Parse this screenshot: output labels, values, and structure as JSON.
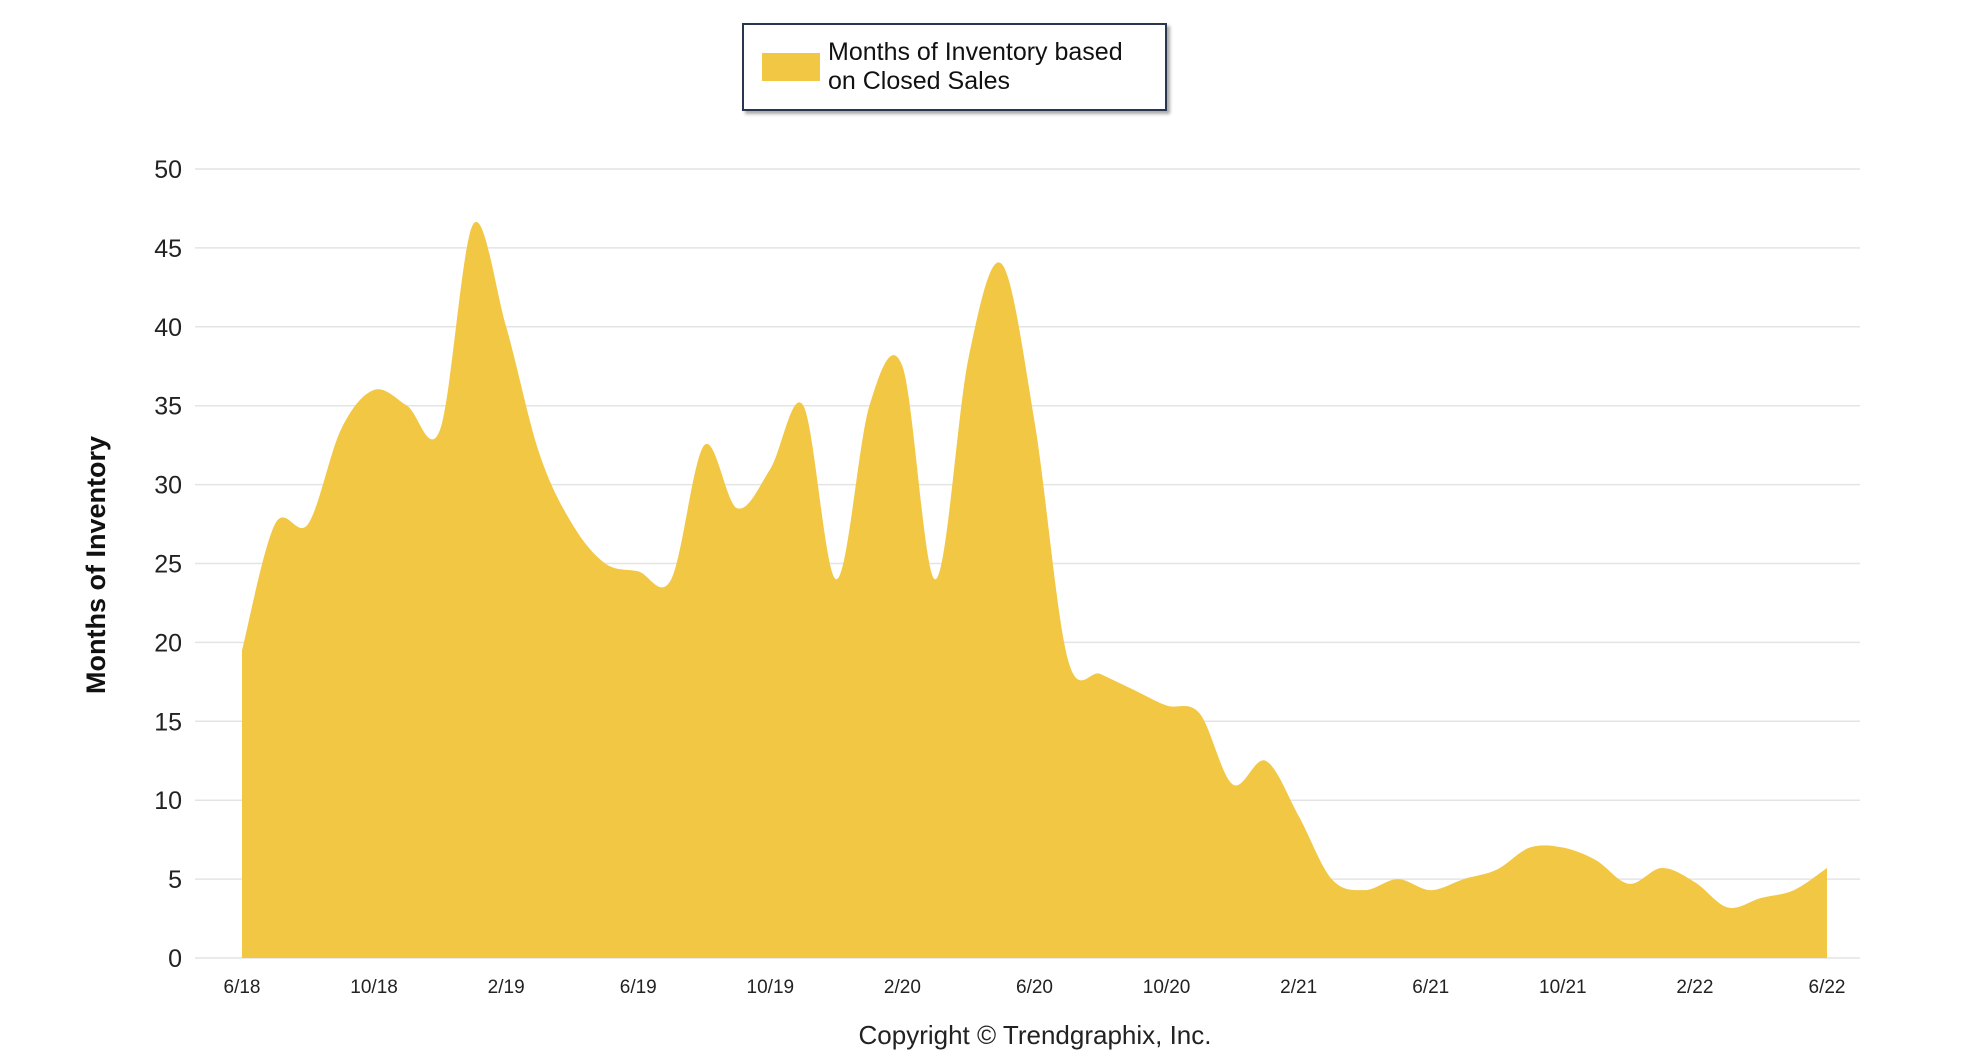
{
  "chart_data": {
    "type": "area",
    "y_label": "Months of Inventory",
    "copyright": "Copyright © Trendgraphix, Inc.",
    "categories": [
      "6/18",
      null,
      null,
      null,
      "10/18",
      null,
      null,
      null,
      "2/19",
      null,
      null,
      null,
      "6/19",
      null,
      null,
      null,
      "10/19",
      null,
      null,
      null,
      "2/20",
      null,
      null,
      null,
      "6/20",
      null,
      null,
      null,
      "10/20",
      null,
      null,
      null,
      "2/21",
      null,
      null,
      null,
      "6/21",
      null,
      null,
      null,
      "10/21",
      null,
      null,
      null,
      "2/22",
      null,
      null,
      null,
      "6/22"
    ],
    "series": [
      {
        "name": "Months of Inventory based on Closed Sales",
        "color": "#f2c744",
        "values": [
          19.5,
          27.5,
          27.5,
          33.5,
          36,
          35,
          33.5,
          46.5,
          40,
          32,
          27.5,
          25,
          24.5,
          24,
          32.5,
          28.5,
          31,
          35,
          24,
          35,
          37.5,
          24,
          38,
          44,
          34,
          19,
          18,
          17,
          16,
          15.5,
          11,
          12.5,
          9,
          5,
          4.3,
          5,
          4.3,
          5,
          5.6,
          7,
          7,
          6.2,
          4.7,
          5.7,
          4.8,
          3.2,
          3.8,
          4.3,
          5.7
        ]
      }
    ],
    "ylim": [
      0,
      50
    ],
    "yticks": [
      0,
      5,
      10,
      15,
      20,
      25,
      30,
      35,
      40,
      45,
      50
    ],
    "grid": true
  }
}
